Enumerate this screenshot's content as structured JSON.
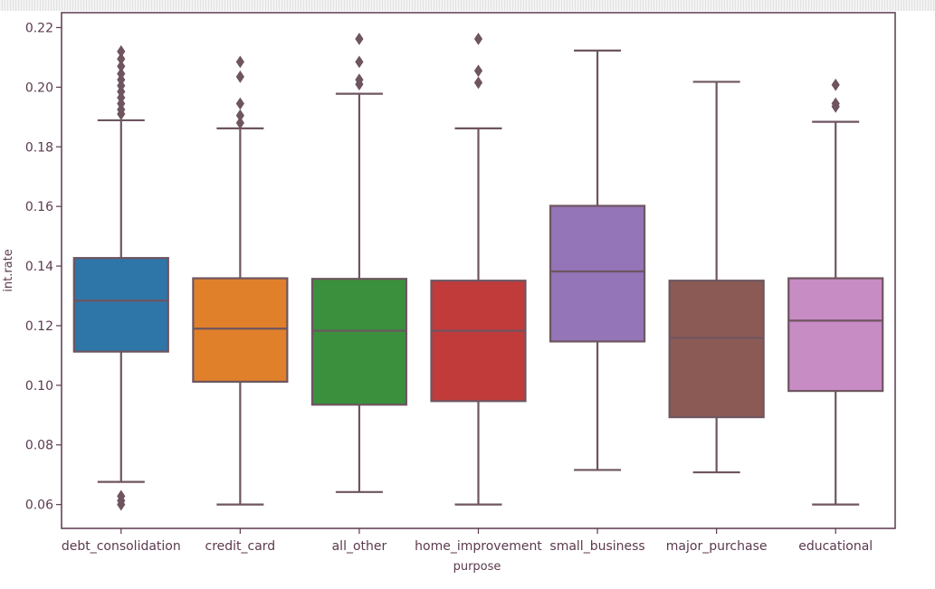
{
  "chart_data": {
    "type": "box",
    "xlabel": "purpose",
    "ylabel": "int.rate",
    "ylim": [
      0.052,
      0.225
    ],
    "yticks": [
      "0.06",
      "0.08",
      "0.10",
      "0.12",
      "0.14",
      "0.16",
      "0.18",
      "0.20",
      "0.22"
    ],
    "grid": false,
    "colors": {
      "axis": "#5b3a4e",
      "line": "#6e5560"
    },
    "categories": [
      "debt_consolidation",
      "credit_card",
      "all_other",
      "home_improvement",
      "small_business",
      "major_purchase",
      "educational"
    ],
    "boxes": [
      {
        "category": "debt_consolidation",
        "color": "#2e75a8",
        "whislo": 0.0676,
        "q1": 0.1113,
        "median": 0.1284,
        "q3": 0.1427,
        "whishi": 0.1889,
        "fliers": [
          0.06,
          0.0613,
          0.0628,
          0.191,
          0.1925,
          0.1945,
          0.1965,
          0.1985,
          0.2005,
          0.2025,
          0.2045,
          0.207,
          0.2095,
          0.212
        ]
      },
      {
        "category": "credit_card",
        "color": "#e1802b",
        "whislo": 0.06,
        "q1": 0.1012,
        "median": 0.119,
        "q3": 0.1359,
        "whishi": 0.1862,
        "fliers": [
          0.188,
          0.1905,
          0.1945,
          0.2035,
          0.2085
        ]
      },
      {
        "category": "all_other",
        "color": "#3a903d",
        "whislo": 0.0642,
        "q1": 0.0935,
        "median": 0.1183,
        "q3": 0.1357,
        "whishi": 0.1978,
        "fliers": [
          0.201,
          0.2025,
          0.2085,
          0.2162
        ]
      },
      {
        "category": "home_improvement",
        "color": "#c13b3b",
        "whislo": 0.06,
        "q1": 0.0947,
        "median": 0.1183,
        "q3": 0.1351,
        "whishi": 0.1862,
        "fliers": [
          0.2015,
          0.2055,
          0.2162
        ]
      },
      {
        "category": "small_business",
        "color": "#9375b8",
        "whislo": 0.0716,
        "q1": 0.1147,
        "median": 0.1382,
        "q3": 0.1602,
        "whishi": 0.2123,
        "fliers": []
      },
      {
        "category": "major_purchase",
        "color": "#8c5a55",
        "whislo": 0.0708,
        "q1": 0.0893,
        "median": 0.1159,
        "q3": 0.1351,
        "whishi": 0.2018,
        "fliers": []
      },
      {
        "category": "educational",
        "color": "#c88cc4",
        "whislo": 0.06,
        "q1": 0.0981,
        "median": 0.1217,
        "q3": 0.1359,
        "whishi": 0.1884,
        "fliers": [
          0.1935,
          0.1945,
          0.2008
        ]
      }
    ]
  }
}
